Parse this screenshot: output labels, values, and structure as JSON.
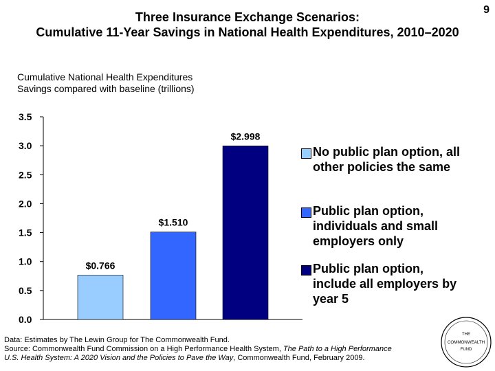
{
  "page_number": "9",
  "title_line1": "Three Insurance Exchange Scenarios:",
  "title_line2": "Cumulative 11-Year Savings in National Health Expenditures, 2010–2020",
  "subtitle_line1": "Cumulative National Health Expenditures",
  "subtitle_line2": "Savings compared with baseline (trillions)",
  "chart_data": {
    "type": "bar",
    "title": "Three Insurance Exchange Scenarios: Cumulative 11-Year Savings in National Health Expenditures, 2010–2020",
    "ylabel": "Cumulative National Health Expenditures Savings compared with baseline (trillions)",
    "ylim": [
      0,
      3.5
    ],
    "yticks": [
      "0.0",
      "0.5",
      "1.0",
      "1.5",
      "2.0",
      "2.5",
      "3.0",
      "3.5"
    ],
    "categories": [
      "No public plan option, all other policies the same",
      "Public plan option, individuals and small employers only",
      "Public plan option, include all employers by year 5"
    ],
    "values": [
      0.766,
      1.51,
      2.998
    ],
    "data_labels": [
      "$0.766",
      "$1.510",
      "$2.998"
    ],
    "colors": [
      "#99ccff",
      "#3366ff",
      "#000080"
    ],
    "legend_position": "right"
  },
  "legend": [
    {
      "line1": "No public plan option, all",
      "line2": "other policies the same",
      "line3": ""
    },
    {
      "line1": "Public plan option,",
      "line2": "individuals and small",
      "line3": "employers only"
    },
    {
      "line1": "Public plan option,",
      "line2": "include all employers by",
      "line3": "year 5"
    }
  ],
  "footer_line1": "Data: Estimates by The Lewin Group for The Commonwealth Fund.",
  "footer_line2_pre": "Source: Commonwealth Fund Commission on a High Performance Health System, ",
  "footer_line2_italic": "The Path to a High Performance",
  "footer_line3_italic": "U.S. Health System: A 2020 Vision and the Policies to Pave the Way",
  "footer_line3_post": ", Commonwealth Fund, February 2009.",
  "logo_line1": "THE",
  "logo_line2": "COMMONWEALTH",
  "logo_line3": "FUND"
}
